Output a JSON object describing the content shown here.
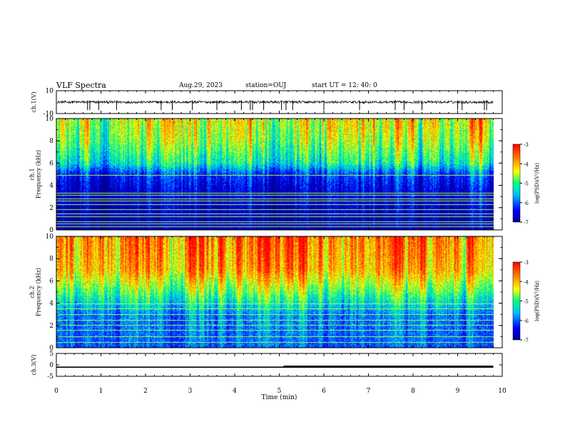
{
  "header": {
    "title": "VLF Spectra",
    "date": "Aug.29, 2023",
    "station": "station=OUJ",
    "start": "start  UT =   12: 40: 0"
  },
  "chart_data": [
    {
      "type": "line",
      "panel": "ch1-waveform",
      "ylabel": "ch.1(V)",
      "ylim": [
        -10,
        10
      ],
      "yticks": [
        "10",
        "-10"
      ],
      "baseline": 0,
      "spikes_min": [
        0.7,
        0.75,
        0.95,
        1.35,
        2.35,
        2.6,
        3.05,
        3.6,
        4.15,
        4.35,
        4.4,
        4.65,
        5.05,
        5.15,
        5.3,
        6.0,
        6.8,
        7.6,
        7.8,
        8.2,
        9.0,
        9.1,
        9.6,
        9.65
      ]
    },
    {
      "type": "heatmap",
      "panel": "ch1-spectrogram",
      "ylabel": "ch.1\nFrequency (kHz)",
      "ylim": [
        0,
        10
      ],
      "yticks": [
        "0",
        "2",
        "4",
        "6",
        "8",
        "10"
      ],
      "colorbar": {
        "label": "log(PSD)(V²/Hz)",
        "min": -7,
        "max": -3,
        "ticks": [
          "-3",
          "-4",
          "-5",
          "-6",
          "-7"
        ]
      },
      "hum_lines_khz": [
        0.3,
        0.55,
        0.8,
        1.2,
        1.5,
        1.85,
        2.3,
        2.6,
        2.85,
        3.15,
        3.35,
        4.95
      ],
      "intensity_profile": [
        {
          "freq_khz": 0,
          "log_psd": -6.8
        },
        {
          "freq_khz": 3.5,
          "log_psd": -6.6
        },
        {
          "freq_khz": 5,
          "log_psd": -6.2
        },
        {
          "freq_khz": 6,
          "log_psd": -5.2
        },
        {
          "freq_khz": 8,
          "log_psd": -4.6
        },
        {
          "freq_khz": 10,
          "log_psd": -4.3
        }
      ]
    },
    {
      "type": "heatmap",
      "panel": "ch2-spectrogram",
      "ylabel": "ch.2\nFrequency (kHz)",
      "ylim": [
        0,
        10
      ],
      "yticks": [
        "0",
        "2",
        "4",
        "6",
        "8",
        "10"
      ],
      "colorbar": {
        "label": "log(PSD)(V²/Hz)",
        "min": -7,
        "max": -3,
        "ticks": [
          "-3",
          "-4",
          "-5",
          "-6",
          "-7"
        ]
      },
      "hum_lines_khz": [
        0.5,
        1.0,
        1.6,
        2.05,
        2.5,
        3.0,
        3.5,
        4.0
      ],
      "intensity_profile": [
        {
          "freq_khz": 0,
          "log_psd": -6.0
        },
        {
          "freq_khz": 3,
          "log_psd": -5.8
        },
        {
          "freq_khz": 5,
          "log_psd": -4.8
        },
        {
          "freq_khz": 7,
          "log_psd": -3.9
        },
        {
          "freq_khz": 10,
          "log_psd": -3.6
        }
      ]
    },
    {
      "type": "line",
      "panel": "ch3-voltage",
      "ylabel": "ch.3(V)",
      "ylim": [
        -5,
        5
      ],
      "yticks": [
        "5",
        "0",
        "-5"
      ],
      "x": [
        0,
        5.1,
        5.1,
        9.8
      ],
      "y": [
        -1.0,
        -1.0,
        -0.8,
        -0.8
      ]
    }
  ],
  "xaxis": {
    "label": "Time  (min)",
    "xlim": [
      0,
      10
    ],
    "ticks": [
      "0",
      "1",
      "2",
      "3",
      "4",
      "5",
      "6",
      "7",
      "8",
      "9",
      "10"
    ],
    "data_end_min": 9.8
  },
  "colors": {
    "colormap": [
      "#00008b",
      "#0000ff",
      "#00bfff",
      "#00ff80",
      "#ffff00",
      "#ff8000",
      "#ff0000"
    ],
    "hum_line": "#a8ff50",
    "frame": "#000000"
  }
}
